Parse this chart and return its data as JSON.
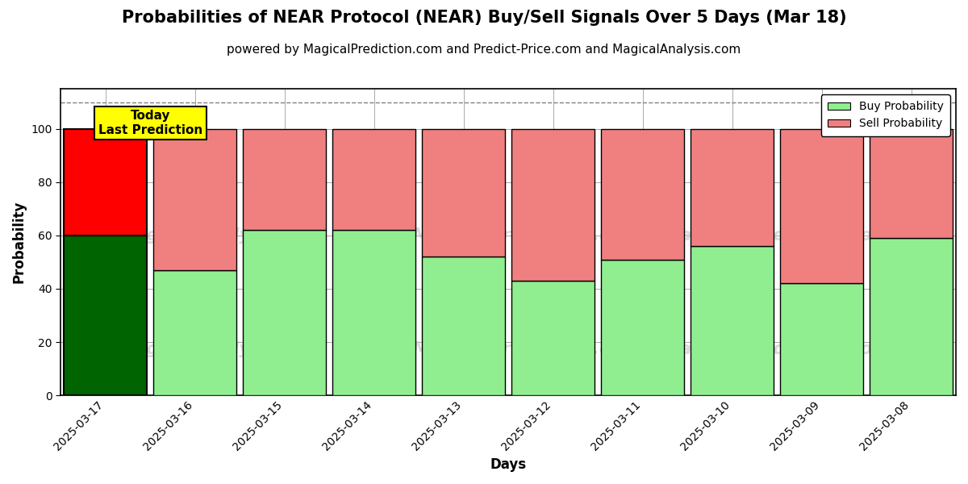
{
  "title": "Probabilities of NEAR Protocol (NEAR) Buy/Sell Signals Over 5 Days (Mar 18)",
  "subtitle": "powered by MagicalPrediction.com and Predict-Price.com and MagicalAnalysis.com",
  "xlabel": "Days",
  "ylabel": "Probability",
  "categories": [
    "2025-03-17",
    "2025-03-16",
    "2025-03-15",
    "2025-03-14",
    "2025-03-13",
    "2025-03-12",
    "2025-03-11",
    "2025-03-10",
    "2025-03-09",
    "2025-03-08"
  ],
  "buy_values": [
    60,
    47,
    62,
    62,
    52,
    43,
    51,
    56,
    42,
    59
  ],
  "sell_values": [
    40,
    53,
    38,
    38,
    48,
    57,
    49,
    44,
    58,
    41
  ],
  "today_buy_color": "#006400",
  "today_sell_color": "#ff0000",
  "normal_buy_color": "#90EE90",
  "normal_sell_color": "#F08080",
  "bar_edge_color": "#000000",
  "dashed_line_y": 110,
  "ylim": [
    0,
    115
  ],
  "yticks": [
    0,
    20,
    40,
    60,
    80,
    100
  ],
  "watermark_color": "#cccccc",
  "today_label": "Today\nLast Prediction",
  "today_label_bg": "#ffff00",
  "legend_buy_label": "Buy Probability",
  "legend_sell_label": "Sell Probability",
  "grid_color": "#aaaaaa",
  "background_color": "#ffffff",
  "title_fontsize": 15,
  "subtitle_fontsize": 11,
  "axis_label_fontsize": 12,
  "tick_fontsize": 10,
  "bar_width": 0.93
}
